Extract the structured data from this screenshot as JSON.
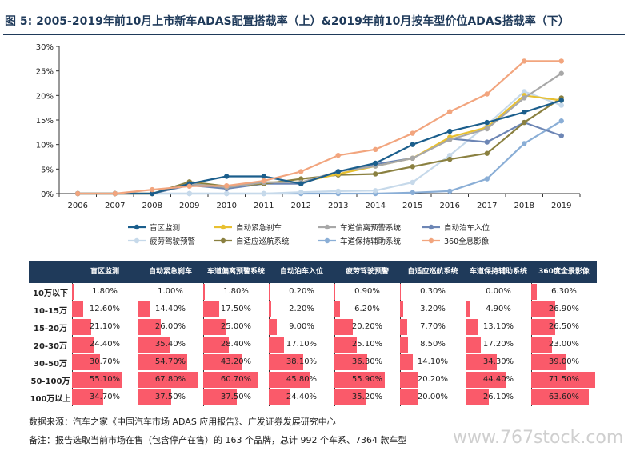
{
  "title": "图 5: 2005-2019年前10月上市新车ADAS配置搭载率（上）&2019年前10月按车型价位ADAS搭载率（下）",
  "source": "数据来源：汽车之家《中国汽车市场 ADAS 应用报告》、广发证券发展研究中心",
  "note": "备注：报告选取当前市场在售（包含停产在售）的 163 个品牌，总计 992 个车系、7364 款车型",
  "watermark": "www.767stock.com",
  "chart_data": [
    {
      "type": "line",
      "x": [
        "2006",
        "2007",
        "2008",
        "2009",
        "2010",
        "2011",
        "2012",
        "2013",
        "2014",
        "2015",
        "2016",
        "2017",
        "2018",
        "2019"
      ],
      "ylim": [
        0,
        30
      ],
      "yticks": [
        "0%",
        "5%",
        "10%",
        "15%",
        "20%",
        "25%",
        "30%"
      ],
      "legend_position": "bottom",
      "grid": false,
      "series": [
        {
          "name": "盲区监测",
          "color": "#1b5e8c",
          "values": [
            0,
            0,
            0,
            2.0,
            3.5,
            3.5,
            2.0,
            4.5,
            6.2,
            10.0,
            12.7,
            14.5,
            16.6,
            19.0
          ]
        },
        {
          "name": "自动紧急刹车",
          "color": "#e8c030",
          "values": [
            0,
            0,
            0,
            2.0,
            1.3,
            2.3,
            2.3,
            4.0,
            5.6,
            7.2,
            11.5,
            13.5,
            20.0,
            19.0
          ]
        },
        {
          "name": "车道偏离预警系统",
          "color": "#a8a8a8",
          "values": [
            0,
            0,
            0,
            2.0,
            1.3,
            2.3,
            2.3,
            4.5,
            5.6,
            7.2,
            11.0,
            13.2,
            19.5,
            24.5
          ]
        },
        {
          "name": "自动泊车入位",
          "color": "#6d86b5",
          "values": [
            0,
            0,
            0,
            1.7,
            1.0,
            2.0,
            2.0,
            4.5,
            6.0,
            7.2,
            11.2,
            10.5,
            14.5,
            11.8
          ]
        },
        {
          "name": "疲劳驾驶预警",
          "color": "#c6d9ea",
          "values": [
            0,
            0,
            0,
            0,
            0,
            0,
            0.3,
            0.5,
            0.6,
            2.3,
            7.8,
            14.0,
            20.8,
            18.0
          ]
        },
        {
          "name": "自适应巡航系统",
          "color": "#8a8040",
          "values": [
            0,
            0,
            0,
            2.4,
            1.5,
            2.0,
            3.0,
            3.8,
            4.0,
            5.5,
            7.0,
            8.2,
            14.5,
            19.5
          ]
        },
        {
          "name": "车道保持辅助系统",
          "color": "#8aaed6",
          "values": [
            0,
            0,
            0,
            0,
            0,
            0,
            0,
            0,
            0,
            0.2,
            0.5,
            3.0,
            10.2,
            14.8
          ]
        },
        {
          "name": "360全息影像",
          "color": "#f2a57e",
          "values": [
            0,
            0,
            0.8,
            1.5,
            1.6,
            2.6,
            4.5,
            7.8,
            9.0,
            12.3,
            16.7,
            20.3,
            27.0,
            27.0
          ]
        }
      ]
    },
    {
      "type": "table",
      "columns": [
        "盲区监测",
        "自动紧急刹车",
        "车道偏离预警系统",
        "自动泊车入位",
        "疲劳驾驶预警",
        "自适应巡航系统",
        "车道保持辅助系统",
        "360度全景影像"
      ],
      "rows": [
        {
          "label": "10万以下",
          "values": [
            1.8,
            1.0,
            1.8,
            0.2,
            0.9,
            0.3,
            0.0,
            6.3
          ],
          "display": [
            "1.80%",
            "1.00%",
            "1.80%",
            "0.20%",
            "0.90%",
            "0.30%",
            "0.00%",
            "6.30%"
          ]
        },
        {
          "label": "10-15万",
          "values": [
            12.6,
            14.4,
            17.5,
            2.2,
            6.2,
            3.2,
            4.9,
            26.9
          ],
          "display": [
            "12.60%",
            "14.40%",
            "17.50%",
            "2.20%",
            "6.20%",
            "3.20%",
            "4.90%",
            "26.90%"
          ]
        },
        {
          "label": "15-20万",
          "values": [
            21.1,
            26.0,
            25.0,
            9.0,
            20.2,
            7.7,
            13.1,
            26.5
          ],
          "display": [
            "21.10%",
            "26.00%",
            "25.00%",
            "9.00%",
            "20.20%",
            "7.70%",
            "13.10%",
            "26.50%"
          ]
        },
        {
          "label": "20-30万",
          "values": [
            24.4,
            35.4,
            28.4,
            17.1,
            25.1,
            8.5,
            17.2,
            23.0
          ],
          "display": [
            "24.40%",
            "35.40%",
            "28.40%",
            "17.10%",
            "25.10%",
            "8.50%",
            "17.20%",
            "23.00%"
          ]
        },
        {
          "label": "30-50万",
          "values": [
            30.7,
            54.7,
            43.2,
            38.1,
            36.3,
            14.1,
            34.3,
            39.0
          ],
          "display": [
            "30.70%",
            "54.70%",
            "43.20%",
            "38.10%",
            "36.30%",
            "14.10%",
            "34.30%",
            "39.00%"
          ]
        },
        {
          "label": "50-100万",
          "values": [
            55.1,
            67.8,
            60.7,
            45.8,
            55.9,
            20.2,
            44.4,
            71.5
          ],
          "display": [
            "55.10%",
            "67.80%",
            "60.70%",
            "45.80%",
            "55.90%",
            "20.20%",
            "44.40%",
            "71.50%"
          ]
        },
        {
          "label": "100万以上",
          "values": [
            34.7,
            37.5,
            37.5,
            24.4,
            35.2,
            20.0,
            26.1,
            63.6
          ],
          "display": [
            "34.70%",
            "37.50%",
            "37.50%",
            "24.40%",
            "35.20%",
            "20.00%",
            "26.10%",
            "63.60%"
          ]
        }
      ],
      "bar_color": "#fa5a6a",
      "header_color": "#1f3a5a"
    }
  ]
}
